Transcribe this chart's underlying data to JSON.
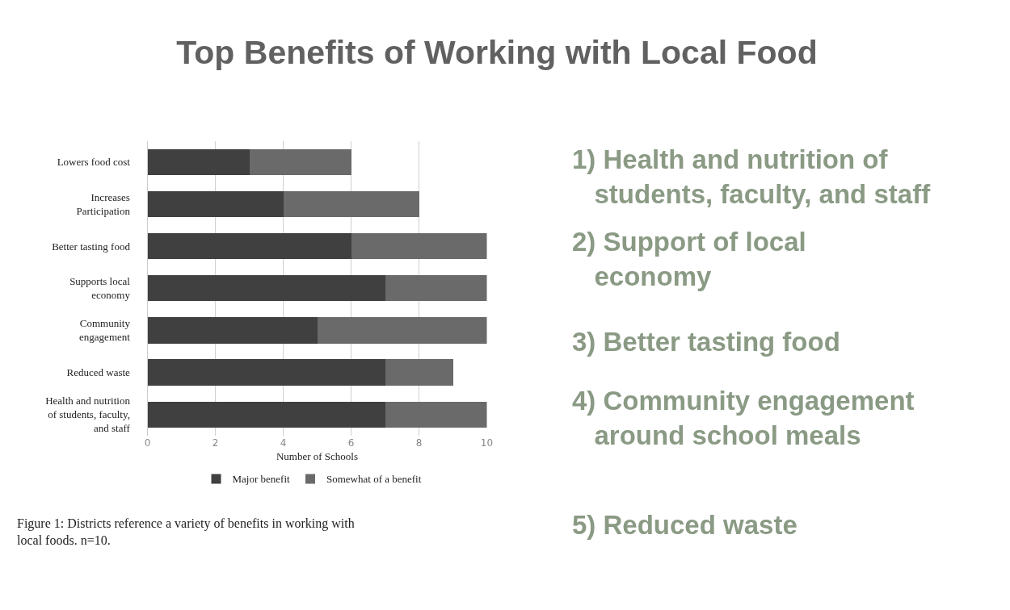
{
  "chart_data": {
    "type": "bar",
    "orientation": "horizontal",
    "stacked": true,
    "title": "Top Benefits of Working with Local Food",
    "xlabel": "Number of Schools",
    "categories": [
      "Lowers food cost",
      "Increases\nParticipation",
      "Better tasting food",
      "Supports local\neconomy",
      "Community\nengagement",
      "Reduced waste",
      "Health and nutrition\nof students, faculty,\nand staff"
    ],
    "series": [
      {
        "name": "Major benefit",
        "color": "#404040",
        "values": [
          3,
          4,
          6,
          7,
          5,
          7,
          7
        ]
      },
      {
        "name": "Somewhat of a benefit",
        "color": "#6a6a6a",
        "values": [
          3,
          4,
          4,
          3,
          5,
          2,
          3
        ]
      }
    ],
    "xlim": [
      0,
      10
    ],
    "xticks": [
      0,
      2,
      4,
      6,
      8,
      10
    ],
    "grid": "x",
    "legend": "bottom",
    "annotations": [
      "1) Health and nutrition of\n   students, faculty, and staff",
      "2) Support of local\n   economy",
      "3) Better tasting food",
      "4) Community engagement\n   around school meals",
      "5) Reduced waste",
      "Figure 1: Districts reference a variety of benefits in working with\nlocal foods. n=10."
    ]
  }
}
